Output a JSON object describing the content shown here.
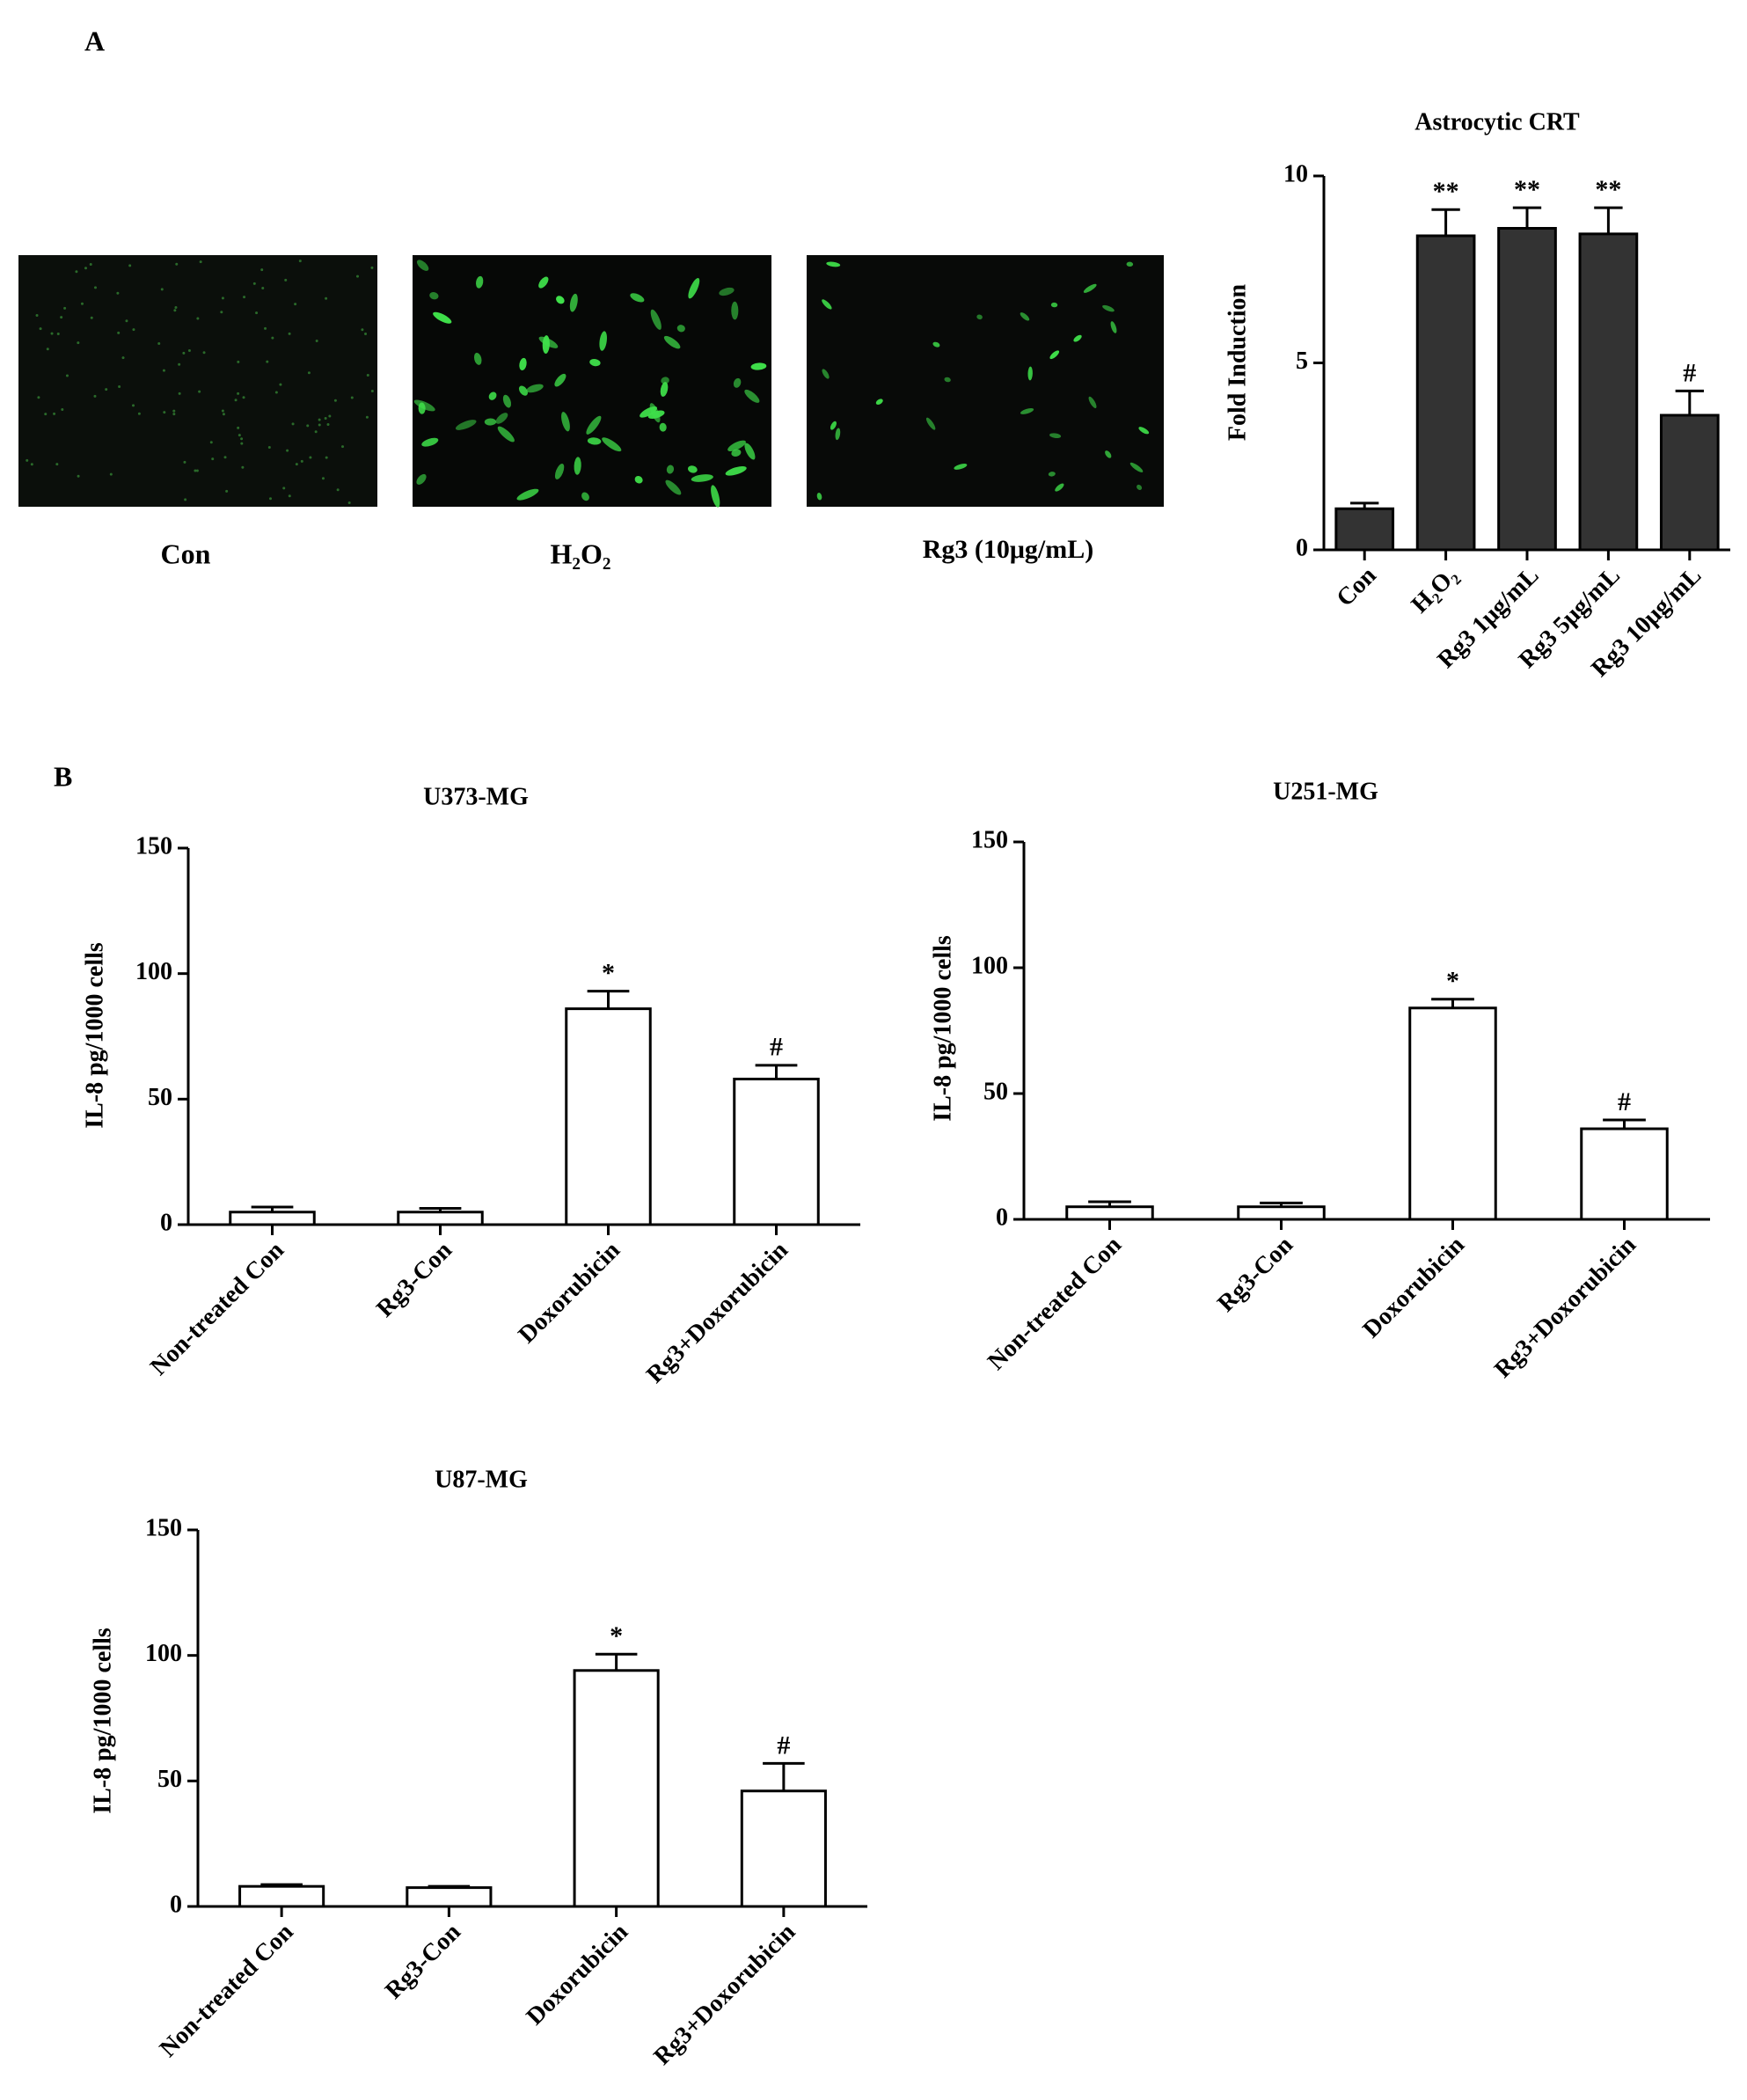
{
  "panel_labels": [
    "A",
    "B"
  ],
  "image_captions": [
    "Con",
    "H₂O₂",
    "Rg3 (10μg/mL)"
  ],
  "chart_data": [
    {
      "type": "bar",
      "title": "Astrocytic CRT",
      "y_label": "Fold Induction",
      "categories": [
        "Con",
        "H₂O₂",
        "Rg3 1μg/mL",
        "Rg3 5μg/mL",
        "Rg3 10μg/mL"
      ],
      "values": [
        1.1,
        8.4,
        8.6,
        8.45,
        3.6
      ],
      "errors": [
        0.15,
        0.7,
        0.55,
        0.7,
        0.65
      ],
      "annotations": [
        null,
        "**",
        "**",
        "**",
        "#"
      ],
      "color": "#333333",
      "ylim": [
        0,
        10
      ],
      "yticks": [
        0,
        5,
        10
      ]
    },
    {
      "type": "bar",
      "title": "U373-MG",
      "y_label": "IL-8 pg/1000 cells",
      "categories": [
        "Non-treated Con",
        "Rg3-Con",
        "Doxorubicin",
        "Rg3+Doxorubicin"
      ],
      "values": [
        5,
        5,
        86,
        58
      ],
      "errors": [
        2,
        1.5,
        7,
        5.5
      ],
      "annotations": [
        null,
        null,
        "*",
        "#"
      ],
      "color": "#ffffff",
      "ylim": [
        0,
        150
      ],
      "yticks": [
        0,
        50,
        100,
        150
      ]
    },
    {
      "type": "bar",
      "title": "U251-MG",
      "y_label": "IL-8 pg/1000 cells",
      "categories": [
        "Non-treated Con",
        "Rg3-Con",
        "Doxorubicin",
        "Rg3+Doxorubicin"
      ],
      "values": [
        5,
        5,
        84,
        36
      ],
      "errors": [
        2,
        1.5,
        3.5,
        3.5
      ],
      "annotations": [
        null,
        null,
        "*",
        "#"
      ],
      "color": "#ffffff",
      "ylim": [
        0,
        150
      ],
      "yticks": [
        0,
        50,
        100,
        150
      ]
    },
    {
      "type": "bar",
      "title": "U87-MG",
      "y_label": "IL-8 pg/1000 cells",
      "categories": [
        "Non-treated Con",
        "Rg3-Con",
        "Doxorubicin",
        "Rg3+Doxorubicin"
      ],
      "values": [
        8,
        7.5,
        94,
        46
      ],
      "errors": [
        0.7,
        0.5,
        6.5,
        11
      ],
      "annotations": [
        null,
        null,
        "*",
        "#"
      ],
      "color": "#ffffff",
      "ylim": [
        0,
        150
      ],
      "yticks": [
        0,
        50,
        100,
        150
      ]
    }
  ]
}
